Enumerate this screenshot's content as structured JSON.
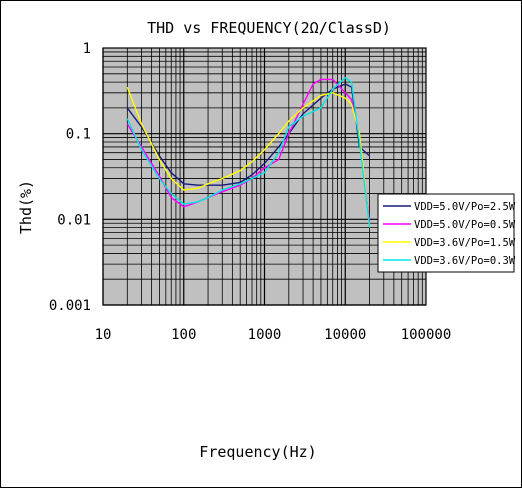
{
  "chart_data": {
    "type": "line",
    "title": "THD vs FREQUENCY(2Ω/ClassD)",
    "xlabel": "Frequency(Hz)",
    "ylabel": "Thd(%)",
    "x_scale": "log",
    "y_scale": "log",
    "xlim": [
      10,
      100000
    ],
    "ylim": [
      0.001,
      1
    ],
    "x_ticks": [
      "10",
      "100",
      "1000",
      "10000",
      "100000"
    ],
    "y_ticks": [
      "1",
      "0.1",
      "0.01",
      "0.001"
    ],
    "grid": true,
    "plot_background": "#c0c0c0",
    "legend_position": "right",
    "series": [
      {
        "name": "VDD=5.0V/Po=2.5W",
        "color": "#1a1a7a",
        "points": [
          [
            20,
            0.2
          ],
          [
            30,
            0.12
          ],
          [
            50,
            0.055
          ],
          [
            70,
            0.035
          ],
          [
            100,
            0.026
          ],
          [
            150,
            0.025
          ],
          [
            200,
            0.025
          ],
          [
            300,
            0.025
          ],
          [
            500,
            0.027
          ],
          [
            700,
            0.033
          ],
          [
            1000,
            0.045
          ],
          [
            1500,
            0.07
          ],
          [
            2000,
            0.1
          ],
          [
            3000,
            0.17
          ],
          [
            5000,
            0.26
          ],
          [
            7000,
            0.33
          ],
          [
            10000,
            0.38
          ],
          [
            12000,
            0.35
          ],
          [
            15000,
            0.07
          ],
          [
            20000,
            0.055
          ]
        ]
      },
      {
        "name": "VDD=5.0V/Po=0.5W",
        "color": "#ff00ff",
        "points": [
          [
            20,
            0.13
          ],
          [
            30,
            0.07
          ],
          [
            50,
            0.032
          ],
          [
            70,
            0.018
          ],
          [
            100,
            0.014
          ],
          [
            150,
            0.016
          ],
          [
            200,
            0.018
          ],
          [
            300,
            0.021
          ],
          [
            500,
            0.025
          ],
          [
            700,
            0.03
          ],
          [
            1000,
            0.04
          ],
          [
            1500,
            0.05
          ],
          [
            2000,
            0.1
          ],
          [
            3000,
            0.22
          ],
          [
            4000,
            0.38
          ],
          [
            5000,
            0.43
          ],
          [
            7000,
            0.43
          ],
          [
            10000,
            0.3
          ],
          [
            12000,
            0.25
          ],
          [
            15000,
            0.09
          ],
          [
            20000,
            0.009
          ]
        ]
      },
      {
        "name": "VDD=3.6V/Po=1.5W",
        "color": "#ffff00",
        "points": [
          [
            20,
            0.35
          ],
          [
            30,
            0.13
          ],
          [
            50,
            0.05
          ],
          [
            70,
            0.03
          ],
          [
            100,
            0.022
          ],
          [
            150,
            0.023
          ],
          [
            200,
            0.026
          ],
          [
            300,
            0.03
          ],
          [
            500,
            0.037
          ],
          [
            700,
            0.047
          ],
          [
            1000,
            0.065
          ],
          [
            1500,
            0.1
          ],
          [
            2000,
            0.14
          ],
          [
            3000,
            0.2
          ],
          [
            5000,
            0.28
          ],
          [
            7000,
            0.3
          ],
          [
            10000,
            0.26
          ],
          [
            12000,
            0.22
          ],
          [
            15000,
            0.1
          ],
          [
            20000,
            0.008
          ]
        ]
      },
      {
        "name": "VDD=3.6V/Po=0.3W",
        "color": "#00e5e5",
        "points": [
          [
            20,
            0.15
          ],
          [
            30,
            0.065
          ],
          [
            50,
            0.03
          ],
          [
            70,
            0.02
          ],
          [
            100,
            0.015
          ],
          [
            150,
            0.016
          ],
          [
            200,
            0.018
          ],
          [
            300,
            0.022
          ],
          [
            500,
            0.026
          ],
          [
            700,
            0.03
          ],
          [
            1000,
            0.035
          ],
          [
            1500,
            0.06
          ],
          [
            2000,
            0.12
          ],
          [
            3000,
            0.16
          ],
          [
            5000,
            0.2
          ],
          [
            7000,
            0.33
          ],
          [
            10000,
            0.45
          ],
          [
            12000,
            0.4
          ],
          [
            15000,
            0.08
          ],
          [
            20000,
            0.008
          ]
        ]
      }
    ]
  }
}
